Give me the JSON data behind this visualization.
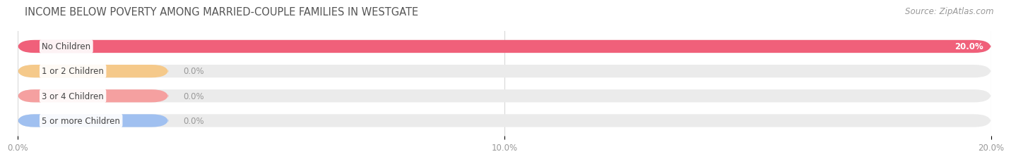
{
  "title": "INCOME BELOW POVERTY AMONG MARRIED-COUPLE FAMILIES IN WESTGATE",
  "source": "Source: ZipAtlas.com",
  "categories": [
    "No Children",
    "1 or 2 Children",
    "3 or 4 Children",
    "5 or more Children"
  ],
  "values": [
    20.0,
    0.0,
    0.0,
    0.0
  ],
  "bar_colors": [
    "#F0607A",
    "#F5C98A",
    "#F5A0A0",
    "#A0C0F0"
  ],
  "bar_bg_color": "#EBEBEB",
  "xlim": [
    0,
    20.0
  ],
  "xticks": [
    0.0,
    10.0,
    20.0
  ],
  "xtick_labels": [
    "0.0%",
    "10.0%",
    "20.0%"
  ],
  "value_label_color": "#999999",
  "title_color": "#555555",
  "title_fontsize": 10.5,
  "bar_height": 0.52,
  "background_color": "#ffffff",
  "grid_color": "#d8d8d8",
  "label_fontsize": 8.5,
  "source_fontsize": 8.5
}
